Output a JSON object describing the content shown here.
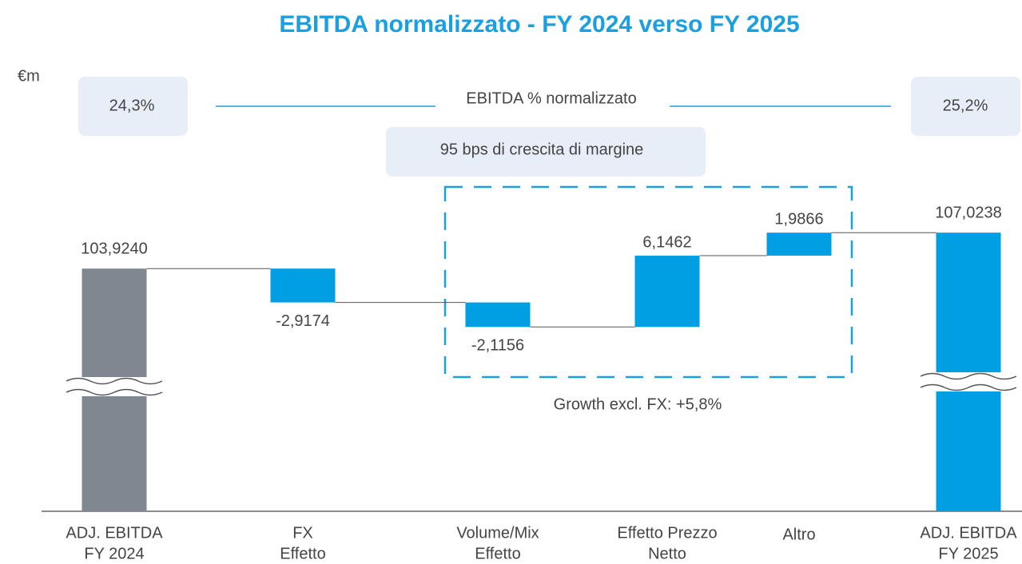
{
  "chart_data": {
    "type": "waterfall",
    "title": "EBITDA normalizzato - FY 2024 verso FY 2025",
    "unit_label": "€m",
    "categories": [
      [
        "ADJ. EBITDA",
        "FY 2024"
      ],
      [
        "FX",
        "Effetto"
      ],
      [
        "Volume/Mix",
        "Effetto"
      ],
      [
        "Effetto Prezzo",
        "Netto"
      ],
      [
        "Altro"
      ],
      [
        "ADJ. EBITDA",
        "FY 2025"
      ]
    ],
    "measures": [
      "total",
      "relative",
      "relative",
      "relative",
      "relative",
      "total"
    ],
    "values": [
      103.924,
      -2.9174,
      -2.1156,
      6.1462,
      1.9866,
      107.0238
    ],
    "value_labels": [
      "103,9240",
      "-2,9174",
      "-2,1156",
      "6,1462",
      "1,9866",
      "107,0238"
    ],
    "colors": [
      "#7f8891",
      "#009fe3",
      "#009fe3",
      "#009fe3",
      "#009fe3",
      "#009fe3"
    ],
    "ylim": [
      83,
      110
    ],
    "axis_break": true,
    "annotations": {
      "margin_start": "24,3%",
      "margin_end": "25,2%",
      "margin_label": "EBITDA % normalizzato",
      "margin_growth": "95 bps di crescita di margine",
      "growth_note": "Growth excl. FX: +5,8%"
    }
  }
}
